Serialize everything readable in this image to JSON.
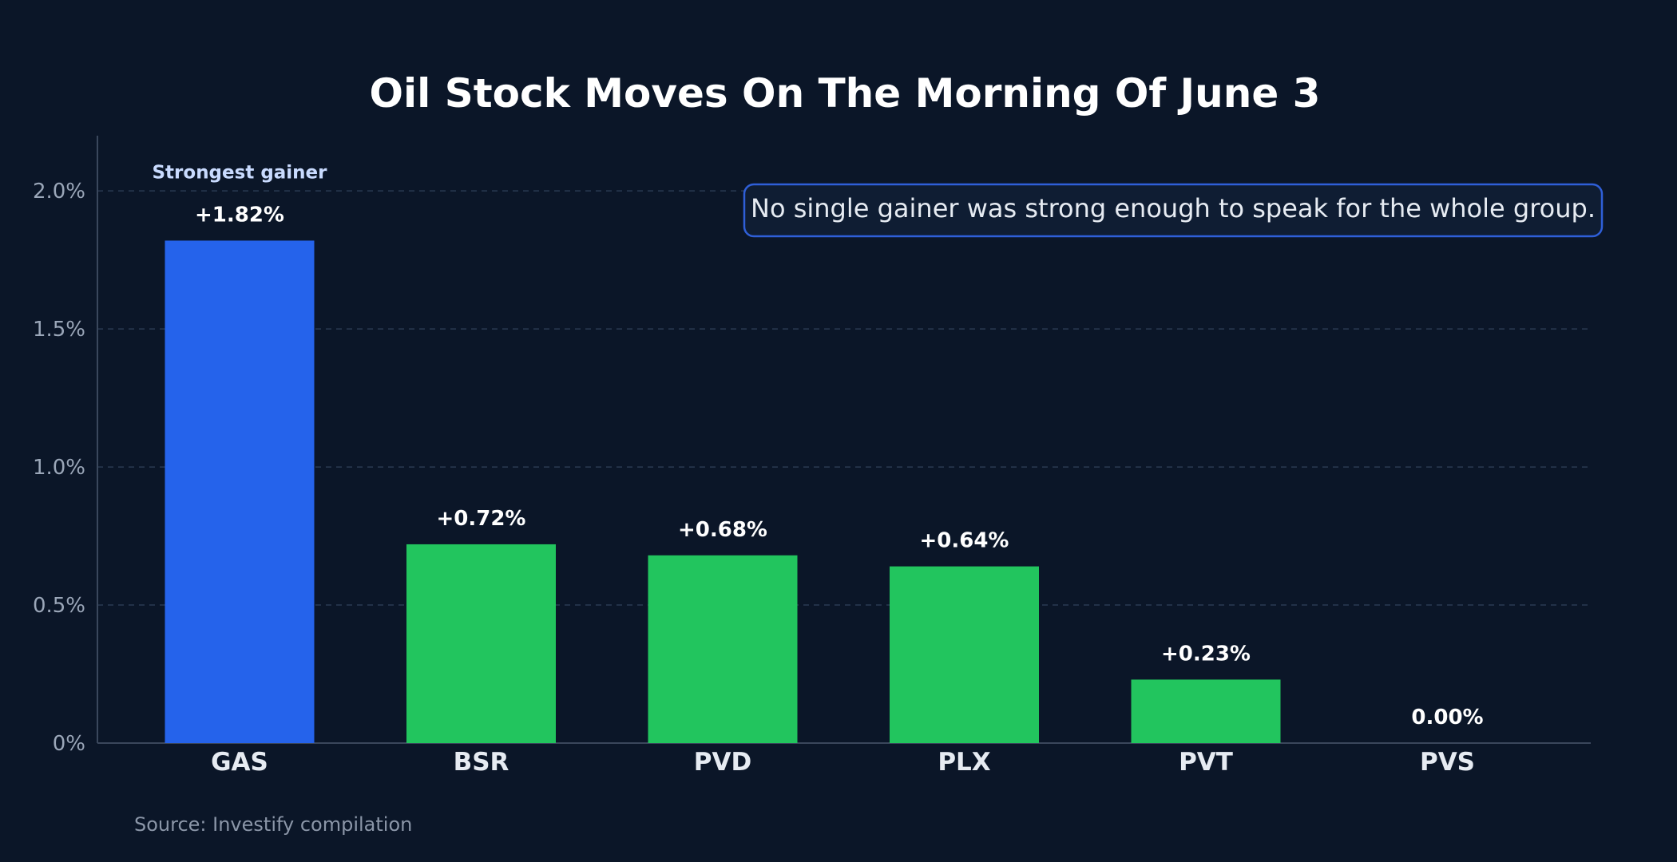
{
  "chart_data": {
    "type": "bar",
    "title": "Oil Stock Moves On The Morning Of June 3",
    "categories": [
      "GAS",
      "BSR",
      "PVD",
      "PLX",
      "PVT",
      "PVS"
    ],
    "values": [
      1.82,
      0.72,
      0.68,
      0.64,
      0.23,
      0.0
    ],
    "value_labels": [
      "+1.82%",
      "+0.72%",
      "+0.68%",
      "+0.64%",
      "+0.23%",
      "0.00%"
    ],
    "ylim": [
      0,
      2.2
    ],
    "yticks": [
      0,
      0.5,
      1.0,
      1.5,
      2.0
    ],
    "ytick_labels": [
      "0%",
      "0.5%",
      "1.0%",
      "1.5%",
      "2.0%"
    ],
    "grid": true,
    "highlight": {
      "category": "GAS",
      "label": "Strongest gainer",
      "color": "#2563eb"
    },
    "bar_color": "#22c55e",
    "annotation": "No single gainer was strong enough to speak for the whole group.",
    "source": "Source: Investify compilation"
  }
}
